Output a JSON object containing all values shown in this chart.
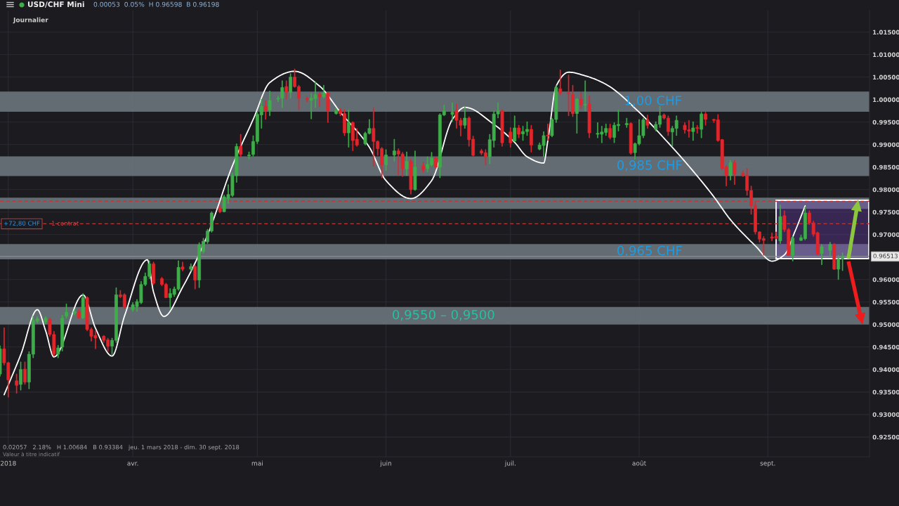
{
  "chart_data": {
    "type": "candlestick",
    "title": "USD/CHF Mini",
    "subtitle": "0.00053  0.05%  H 0.96598  B 0.96198",
    "annotations": [
      "Journalier",
      "0.02057   2.18%   H 1.00684   B 0.93384   jeu. 1 mars 2018 - dim. 30 sept. 2018",
      "Valeur à titre indicatif",
      {
        "text": "1 contrat",
        "y": 0.9724
      }
    ],
    "x": [
      "2018-02-28",
      "2018-03-01",
      "2018-03-02",
      "2018-03-04",
      "2018-03-05",
      "2018-03-06",
      "2018-03-07",
      "2018-03-08",
      "2018-03-09",
      "2018-03-11",
      "2018-03-12",
      "2018-03-13",
      "2018-03-14",
      "2018-03-15",
      "2018-03-16",
      "2018-03-18",
      "2018-03-19",
      "2018-03-20",
      "2018-03-21",
      "2018-03-22",
      "2018-03-23",
      "2018-03-25",
      "2018-03-26",
      "2018-03-27",
      "2018-03-28",
      "2018-03-29",
      "2018-03-30",
      "2018-04-01",
      "2018-04-02",
      "2018-04-03",
      "2018-04-04",
      "2018-04-05",
      "2018-04-06",
      "2018-04-08",
      "2018-04-09",
      "2018-04-10",
      "2018-04-11",
      "2018-04-12",
      "2018-04-13",
      "2018-04-15",
      "2018-04-16",
      "2018-04-17",
      "2018-04-18",
      "2018-04-19",
      "2018-04-20",
      "2018-04-22",
      "2018-04-23",
      "2018-04-24",
      "2018-04-25",
      "2018-04-26",
      "2018-04-27",
      "2018-04-29",
      "2018-04-30",
      "2018-05-01",
      "2018-05-02",
      "2018-05-03",
      "2018-05-04",
      "2018-05-06",
      "2018-05-07",
      "2018-05-08",
      "2018-05-09",
      "2018-05-10",
      "2018-05-11",
      "2018-05-13",
      "2018-05-14",
      "2018-05-15",
      "2018-05-16",
      "2018-05-17",
      "2018-05-18",
      "2018-05-20",
      "2018-05-21",
      "2018-05-22",
      "2018-05-23",
      "2018-05-24",
      "2018-05-25",
      "2018-05-27",
      "2018-05-28",
      "2018-05-29",
      "2018-05-30",
      "2018-05-31",
      "2018-06-01",
      "2018-06-03",
      "2018-06-04",
      "2018-06-05",
      "2018-06-06",
      "2018-06-07",
      "2018-06-08",
      "2018-06-10",
      "2018-06-11",
      "2018-06-12",
      "2018-06-13",
      "2018-06-14",
      "2018-06-15",
      "2018-06-17",
      "2018-06-18",
      "2018-06-19",
      "2018-06-20",
      "2018-06-21",
      "2018-06-22",
      "2018-06-24",
      "2018-06-25",
      "2018-06-26",
      "2018-06-27",
      "2018-06-28",
      "2018-06-29",
      "2018-07-01",
      "2018-07-02",
      "2018-07-03",
      "2018-07-04",
      "2018-07-05",
      "2018-07-06",
      "2018-07-08",
      "2018-07-09",
      "2018-07-10",
      "2018-07-11",
      "2018-07-12",
      "2018-07-13",
      "2018-07-15",
      "2018-07-16",
      "2018-07-17",
      "2018-07-18",
      "2018-07-19",
      "2018-07-20",
      "2018-07-22",
      "2018-07-23",
      "2018-07-24",
      "2018-07-25",
      "2018-07-26",
      "2018-07-27",
      "2018-07-29",
      "2018-07-30",
      "2018-07-31",
      "2018-08-01",
      "2018-08-02",
      "2018-08-03",
      "2018-08-05",
      "2018-08-06",
      "2018-08-07",
      "2018-08-08",
      "2018-08-09",
      "2018-08-10",
      "2018-08-12",
      "2018-08-13",
      "2018-08-14",
      "2018-08-15",
      "2018-08-16",
      "2018-08-17",
      "2018-08-19",
      "2018-08-20",
      "2018-08-21",
      "2018-08-22",
      "2018-08-23",
      "2018-08-24",
      "2018-08-26",
      "2018-08-27",
      "2018-08-28",
      "2018-08-29",
      "2018-08-30",
      "2018-08-31",
      "2018-09-02",
      "2018-09-03",
      "2018-09-04",
      "2018-09-05",
      "2018-09-06",
      "2018-09-07",
      "2018-09-09",
      "2018-09-10",
      "2018-09-11",
      "2018-09-12",
      "2018-09-13",
      "2018-09-14",
      "2018-09-16",
      "2018-09-17",
      "2018-09-18",
      "2018-09-19"
    ],
    "ohlc": [
      [
        0.939,
        0.9453,
        0.9385,
        0.9446
      ],
      [
        0.9446,
        0.9493,
        0.941,
        0.9415
      ],
      [
        0.9415,
        0.9417,
        0.93384,
        0.9377
      ],
      [
        0.9375,
        0.939,
        0.9347,
        0.9365
      ],
      [
        0.9367,
        0.9417,
        0.9354,
        0.94
      ],
      [
        0.9401,
        0.9417,
        0.9367,
        0.9372
      ],
      [
        0.9372,
        0.944,
        0.9357,
        0.9434
      ],
      [
        0.9434,
        0.9519,
        0.9426,
        0.9509
      ],
      [
        0.9507,
        0.9518,
        0.9503,
        0.9513
      ],
      [
        0.9506,
        0.9518,
        0.9501,
        0.9514
      ],
      [
        0.9511,
        0.9514,
        0.9474,
        0.9478
      ],
      [
        0.9478,
        0.9485,
        0.943,
        0.9434
      ],
      [
        0.9434,
        0.9454,
        0.9426,
        0.9448
      ],
      [
        0.945,
        0.9521,
        0.9441,
        0.9514
      ],
      [
        0.9519,
        0.9546,
        0.9514,
        0.9527
      ],
      [
        0.9525,
        0.9533,
        0.9521,
        0.9529
      ],
      [
        0.9529,
        0.9533,
        0.9513,
        0.9515
      ],
      [
        0.9515,
        0.9569,
        0.9513,
        0.956
      ],
      [
        0.956,
        0.9562,
        0.9486,
        0.9489
      ],
      [
        0.9489,
        0.9493,
        0.9463,
        0.9474
      ],
      [
        0.9476,
        0.9486,
        0.9446,
        0.947
      ],
      [
        0.9474,
        0.9476,
        0.946,
        0.9465
      ],
      [
        0.9466,
        0.947,
        0.944,
        0.9452
      ],
      [
        0.9452,
        0.947,
        0.9433,
        0.9465
      ],
      [
        0.9465,
        0.9582,
        0.946,
        0.9566
      ],
      [
        0.9566,
        0.9576,
        0.9559,
        0.9562
      ],
      [
        0.9566,
        0.9569,
        0.9536,
        0.9539
      ],
      [
        0.9533,
        0.9549,
        0.9529,
        0.9544
      ],
      [
        0.954,
        0.9556,
        0.9529,
        0.9551
      ],
      [
        0.9549,
        0.9596,
        0.9546,
        0.9589
      ],
      [
        0.9589,
        0.9615,
        0.9586,
        0.9607
      ],
      [
        0.9607,
        0.9642,
        0.9602,
        0.9635
      ],
      [
        0.9635,
        0.9639,
        0.9589,
        0.9592
      ],
      [
        0.9602,
        0.9605,
        0.9586,
        0.9589
      ],
      [
        0.9589,
        0.9592,
        0.9559,
        0.956
      ],
      [
        0.956,
        0.958,
        0.9536,
        0.9569
      ],
      [
        0.9567,
        0.9584,
        0.9562,
        0.9579
      ],
      [
        0.9579,
        0.9642,
        0.9576,
        0.9627
      ],
      [
        0.9628,
        0.9639,
        0.9619,
        0.9623
      ],
      [
        0.9623,
        0.9635,
        0.9619,
        0.9629
      ],
      [
        0.9629,
        0.9632,
        0.9579,
        0.9599
      ],
      [
        0.9599,
        0.9682,
        0.9582,
        0.9677
      ],
      [
        0.9662,
        0.9692,
        0.9658,
        0.9685
      ],
      [
        0.9684,
        0.9712,
        0.968,
        0.9708
      ],
      [
        0.9708,
        0.9751,
        0.9705,
        0.9748
      ],
      [
        0.9759,
        0.9765,
        0.9748,
        0.9751
      ],
      [
        0.9751,
        0.9788,
        0.975,
        0.9784
      ],
      [
        0.978,
        0.9811,
        0.9769,
        0.9789
      ],
      [
        0.9787,
        0.9837,
        0.9784,
        0.9831
      ],
      [
        0.9831,
        0.9902,
        0.9816,
        0.9896
      ],
      [
        0.9896,
        0.9923,
        0.9873,
        0.9878
      ],
      [
        0.9875,
        0.9884,
        0.9868,
        0.9877
      ],
      [
        0.9878,
        0.992,
        0.9874,
        0.9907
      ],
      [
        0.9907,
        0.9972,
        0.9902,
        0.9967
      ],
      [
        0.9966,
        1.0001,
        0.9936,
        0.9985
      ],
      [
        0.9985,
        0.9998,
        0.9956,
        0.9975
      ],
      [
        0.9977,
        1.0019,
        0.9964,
        0.9998
      ],
      [
        1.0001,
        1.0008,
        0.9995,
        1.0003
      ],
      [
        1.0003,
        1.0042,
        0.9982,
        1.0027
      ],
      [
        1.0029,
        1.0042,
        1.0001,
        1.0016
      ],
      [
        1.0016,
        1.0058,
        1.0003,
        1.005
      ],
      [
        1.005,
        1.00684,
        1.0027,
        1.0029
      ],
      [
        1.0029,
        1.0032,
        0.9977,
        1.0003
      ],
      [
        1.0002,
        1.0006,
        0.9995,
        1.0
      ],
      [
        0.9998,
        1.0014,
        0.9957,
        1.0003
      ],
      [
        1.0002,
        1.004,
        0.9982,
        1.0011
      ],
      [
        1.0011,
        1.0016,
        0.9985,
        1.0006
      ],
      [
        1.0006,
        1.0032,
        1.0003,
        1.0015
      ],
      [
        1.0015,
        1.0016,
        0.9949,
        0.9975
      ],
      [
        0.9969,
        0.998,
        0.9967,
        0.9976
      ],
      [
        0.9976,
        0.998,
        0.9964,
        0.9969
      ],
      [
        0.9969,
        0.9977,
        0.992,
        0.9926
      ],
      [
        0.9926,
        0.9977,
        0.9894,
        0.9949
      ],
      [
        0.9949,
        0.9951,
        0.9886,
        0.9909
      ],
      [
        0.9912,
        0.9936,
        0.9896,
        0.9899
      ],
      [
        0.9902,
        0.9928,
        0.9899,
        0.9925
      ],
      [
        0.9925,
        0.9956,
        0.9923,
        0.9936
      ],
      [
        0.9936,
        0.9982,
        0.9852,
        0.9907
      ],
      [
        0.9907,
        0.9909,
        0.9876,
        0.9891
      ],
      [
        0.9891,
        0.9894,
        0.9826,
        0.9855
      ],
      [
        0.9855,
        0.9889,
        0.9842,
        0.9877
      ],
      [
        0.9877,
        0.9912,
        0.9863,
        0.9886
      ],
      [
        0.9886,
        0.9891,
        0.9831,
        0.9879
      ],
      [
        0.9879,
        0.9883,
        0.9829,
        0.9846
      ],
      [
        0.9846,
        0.9884,
        0.9831,
        0.9863
      ],
      [
        0.9863,
        0.9868,
        0.979,
        0.98
      ],
      [
        0.98,
        0.9886,
        0.9798,
        0.985
      ],
      [
        0.9852,
        0.986,
        0.9839,
        0.9844
      ],
      [
        0.9847,
        0.9873,
        0.9839,
        0.9856
      ],
      [
        0.9855,
        0.9883,
        0.9852,
        0.987
      ],
      [
        0.987,
        0.9873,
        0.9847,
        0.985
      ],
      [
        0.985,
        0.9969,
        0.9826,
        0.9966
      ],
      [
        0.9966,
        0.9988,
        0.9964,
        0.9975
      ],
      [
        0.9967,
        0.9993,
        0.9951,
        0.9972
      ],
      [
        0.9975,
        0.999,
        0.9936,
        0.9954
      ],
      [
        0.9954,
        0.9959,
        0.9919,
        0.9943
      ],
      [
        0.9943,
        0.9985,
        0.9936,
        0.9959
      ],
      [
        0.9959,
        0.9962,
        0.9896,
        0.9911
      ],
      [
        0.9912,
        0.9919,
        0.9874,
        0.9876
      ],
      [
        0.9886,
        0.989,
        0.9877,
        0.9881
      ],
      [
        0.9882,
        0.9889,
        0.9855,
        0.9873
      ],
      [
        0.9873,
        0.9923,
        0.9857,
        0.9911
      ],
      [
        0.9909,
        0.9975,
        0.9894,
        0.9968
      ],
      [
        0.9968,
        0.9993,
        0.9959,
        0.9975
      ],
      [
        0.9975,
        0.9977,
        0.9896,
        0.9904
      ],
      [
        0.9928,
        0.9938,
        0.9894,
        0.9904
      ],
      [
        0.9908,
        0.9964,
        0.9907,
        0.9937
      ],
      [
        0.9937,
        0.9943,
        0.9915,
        0.9923
      ],
      [
        0.9924,
        0.9941,
        0.9909,
        0.9929
      ],
      [
        0.9929,
        0.9951,
        0.992,
        0.9934
      ],
      [
        0.9934,
        0.9943,
        0.9883,
        0.9899
      ],
      [
        0.989,
        0.9904,
        0.9888,
        0.9899
      ],
      [
        0.9898,
        0.9929,
        0.9873,
        0.992
      ],
      [
        0.9921,
        0.9946,
        0.9909,
        0.9919
      ],
      [
        0.992,
        0.9959,
        0.9917,
        0.9956
      ],
      [
        0.9956,
        1.0032,
        0.9949,
        1.0027
      ],
      [
        1.0024,
        1.0066,
        1.0011,
        1.0015
      ],
      [
        1.0015,
        1.0055,
        0.9964,
        1.0013
      ],
      [
        1.0011,
        1.0032,
        0.9962,
        0.9969
      ],
      [
        0.9969,
        1.0003,
        0.9925,
        1.0001
      ],
      [
        1.0001,
        1.0016,
        0.998,
        0.9988
      ],
      [
        0.9988,
        1.0042,
        0.9975,
        0.999
      ],
      [
        0.999,
        1.0008,
        0.9915,
        0.9926
      ],
      [
        0.9923,
        0.9949,
        0.9915,
        0.9925
      ],
      [
        0.9923,
        0.9941,
        0.9904,
        0.9928
      ],
      [
        0.9927,
        0.9946,
        0.992,
        0.9936
      ],
      [
        0.9936,
        0.9946,
        0.9912,
        0.9916
      ],
      [
        0.9916,
        0.9949,
        0.9904,
        0.9943
      ],
      [
        0.9942,
        0.9977,
        0.993,
        0.9945
      ],
      [
        0.9944,
        0.9959,
        0.9938,
        0.9947
      ],
      [
        0.9947,
        0.9949,
        0.9878,
        0.9881
      ],
      [
        0.9882,
        0.9904,
        0.9867,
        0.9902
      ],
      [
        0.9902,
        0.9956,
        0.9899,
        0.992
      ],
      [
        0.992,
        0.9959,
        0.9915,
        0.9955
      ],
      [
        0.9955,
        0.9966,
        0.9936,
        0.9943
      ],
      [
        0.9934,
        0.9951,
        0.993,
        0.9945
      ],
      [
        0.9945,
        0.9985,
        0.9938,
        0.9964
      ],
      [
        0.9966,
        0.9969,
        0.9956,
        0.9959
      ],
      [
        0.9959,
        0.9964,
        0.992,
        0.9929
      ],
      [
        0.9928,
        0.9941,
        0.9896,
        0.9936
      ],
      [
        0.9936,
        0.9964,
        0.992,
        0.9954
      ],
      [
        0.9943,
        0.9949,
        0.9925,
        0.9933
      ],
      [
        0.9933,
        0.9954,
        0.9916,
        0.993
      ],
      [
        0.9929,
        0.9951,
        0.9909,
        0.9937
      ],
      [
        0.9938,
        0.9943,
        0.9925,
        0.9936
      ],
      [
        0.9934,
        0.9972,
        0.9915,
        0.9968
      ],
      [
        0.9968,
        0.9972,
        0.9943,
        0.9956
      ],
      [
        0.9956,
        0.9957,
        0.9949,
        0.9954
      ],
      [
        0.9955,
        0.9967,
        0.9907,
        0.9909
      ],
      [
        0.9911,
        0.9912,
        0.9844,
        0.9847
      ],
      [
        0.985,
        0.9853,
        0.9808,
        0.9831
      ],
      [
        0.9831,
        0.9865,
        0.9821,
        0.986
      ],
      [
        0.986,
        0.9865,
        0.9811,
        0.9834
      ],
      [
        0.9836,
        0.9842,
        0.9829,
        0.9831
      ],
      [
        0.9832,
        0.9847,
        0.9787,
        0.9798
      ],
      [
        0.9798,
        0.9808,
        0.9745,
        0.9764
      ],
      [
        0.9764,
        0.9774,
        0.9701,
        0.9706
      ],
      [
        0.9706,
        0.9707,
        0.9683,
        0.969
      ],
      [
        0.9691,
        0.9696,
        0.9654,
        0.9687
      ],
      [
        0.9695,
        0.9704,
        0.9686,
        0.9692
      ],
      [
        0.9696,
        0.9706,
        0.969,
        0.9692
      ],
      [
        0.9686,
        0.9766,
        0.968,
        0.974
      ],
      [
        0.9742,
        0.9753,
        0.9706,
        0.9711
      ],
      [
        0.9711,
        0.9714,
        0.9653,
        0.9654
      ],
      [
        0.9654,
        0.9696,
        0.9641,
        0.9692
      ],
      [
        0.9687,
        0.9699,
        0.9686,
        0.9693
      ],
      [
        0.9691,
        0.9761,
        0.9688,
        0.9748
      ],
      [
        0.9748,
        0.9753,
        0.9722,
        0.9726
      ],
      [
        0.9726,
        0.973,
        0.9696,
        0.9701
      ],
      [
        0.9704,
        0.9706,
        0.9654,
        0.9657
      ],
      [
        0.9658,
        0.9678,
        0.9633,
        0.9673
      ],
      [
        0.9665,
        0.9683,
        0.9652,
        0.9678
      ],
      [
        0.9678,
        0.968,
        0.9622,
        0.9623
      ],
      [
        0.9623,
        0.9654,
        0.96,
        0.9646
      ],
      [
        0.9646,
        0.96598,
        0.96198,
        0.96513
      ]
    ],
    "series": [
      {
        "type": "line",
        "color": "#ffffff",
        "x": [
          "2018-03-01",
          "2018-03-05",
          "2018-03-09",
          "2018-03-11",
          "2018-03-13",
          "2018-03-20",
          "2018-03-23",
          "2018-03-27",
          "2018-03-30",
          "2018-04-04T12:00",
          "2018-04-06",
          "2018-04-08T12:00",
          "2018-04-13",
          "2018-04-19",
          "2018-04-25",
          "2018-04-30",
          "2018-05-04",
          "2018-05-10",
          "2018-05-16",
          "2018-05-21",
          "2018-05-28",
          "2018-06-01",
          "2018-06-07",
          "2018-06-12",
          "2018-06-17",
          "2018-06-20",
          "2018-06-27",
          "2018-07-02",
          "2018-07-05",
          "2018-07-09",
          "2018-07-10",
          "2018-07-12",
          "2018-07-15",
          "2018-07-19",
          "2018-07-24",
          "2018-08-01",
          "2018-08-07T12:00",
          "2018-08-13",
          "2018-08-19",
          "2018-08-23",
          "2018-08-29",
          "2018-09-02",
          "2018-09-05",
          "2018-09-07T12:00",
          "2018-09-10"
        ],
        "values": [
          0.9344,
          0.9433,
          0.9533,
          0.9486,
          0.9428,
          0.9566,
          0.9492,
          0.943,
          0.9519,
          0.9644,
          0.9572,
          0.9518,
          0.9583,
          0.9699,
          0.9853,
          0.9956,
          1.0038,
          1.0063,
          1.003,
          0.9972,
          0.9894,
          0.982,
          0.978,
          0.982,
          0.9956,
          0.9983,
          0.9945,
          0.9905,
          0.9873,
          0.9859,
          0.9909,
          1.003,
          1.0061,
          1.0053,
          1.0034,
          0.9972,
          0.9909,
          0.9852,
          0.9784,
          0.9733,
          0.9675,
          0.9641,
          0.9655,
          0.9706,
          0.9764
        ]
      }
    ],
    "xlim": [
      "2018-02-28",
      "2018-09-25T12:00"
    ],
    "xticks": [
      {
        "value": "2018-03-02",
        "label": "2018"
      },
      {
        "value": "2018-04-01",
        "label": "avr."
      },
      {
        "value": "2018-05-01",
        "label": "mai"
      },
      {
        "value": "2018-06-01",
        "label": "juin"
      },
      {
        "value": "2018-07-01",
        "label": "juil."
      },
      {
        "value": "2018-08-01",
        "label": "août"
      },
      {
        "value": "2018-09-01",
        "label": "sept."
      }
    ],
    "ylim": [
      0.9206,
      1.0198
    ],
    "yticks": [
      {
        "value": 0.925,
        "label": "0.92500"
      },
      {
        "value": 0.93,
        "label": "0.93000"
      },
      {
        "value": 0.935,
        "label": "0.93500"
      },
      {
        "value": 0.94,
        "label": "0.94000"
      },
      {
        "value": 0.945,
        "label": "0.94500"
      },
      {
        "value": 0.95,
        "label": "0.95000"
      },
      {
        "value": 0.955,
        "label": "0.95500"
      },
      {
        "value": 0.96,
        "label": "0.96000"
      },
      {
        "value": 0.965,
        "label": null
      },
      {
        "value": 0.97,
        "label": "0.97000"
      },
      {
        "value": 0.975,
        "label": "0.97500"
      },
      {
        "value": 0.98,
        "label": "0.98000"
      },
      {
        "value": 0.985,
        "label": "0.98500"
      },
      {
        "value": 0.99,
        "label": "0.99000"
      },
      {
        "value": 0.995,
        "label": "0.99500"
      },
      {
        "value": 1.0,
        "label": "1.00000"
      },
      {
        "value": 1.005,
        "label": "1.00500"
      },
      {
        "value": 1.01,
        "label": "1.01000"
      },
      {
        "value": 1.015,
        "label": "1.01500"
      }
    ],
    "bands": [
      {
        "axis": "y",
        "from": 0.9973,
        "to": 1.0018,
        "label": "1,00 CHF",
        "color": "#6c747c"
      },
      {
        "axis": "y",
        "from": 0.983,
        "to": 0.9874,
        "label": "0,985 CHF",
        "color": "#6c747c"
      },
      {
        "axis": "y",
        "from": 0.9757,
        "to": 0.9782,
        "color": "#6c747c"
      },
      {
        "axis": "y",
        "from": 0.9645,
        "to": 0.9679,
        "label": "0,965 CHF",
        "color": "#6c747c"
      },
      {
        "axis": "y",
        "from": 0.95,
        "to": 0.9539,
        "label": "0,9550 – 0,9500",
        "color": "#6c747c"
      }
    ],
    "ref_lines": [
      {
        "axis": "y",
        "value": 0.9774,
        "color": "#b8383a",
        "line_style": "dashed"
      },
      {
        "axis": "y",
        "value": 0.9724,
        "label": "+72,80 CHF",
        "color": "#b8383a",
        "line_style": "dashed"
      },
      {
        "axis": "y",
        "value": 0.96513,
        "label": "0.96513",
        "color": "#8e8e93",
        "line_style": "solid"
      }
    ],
    "grid": true
  }
}
